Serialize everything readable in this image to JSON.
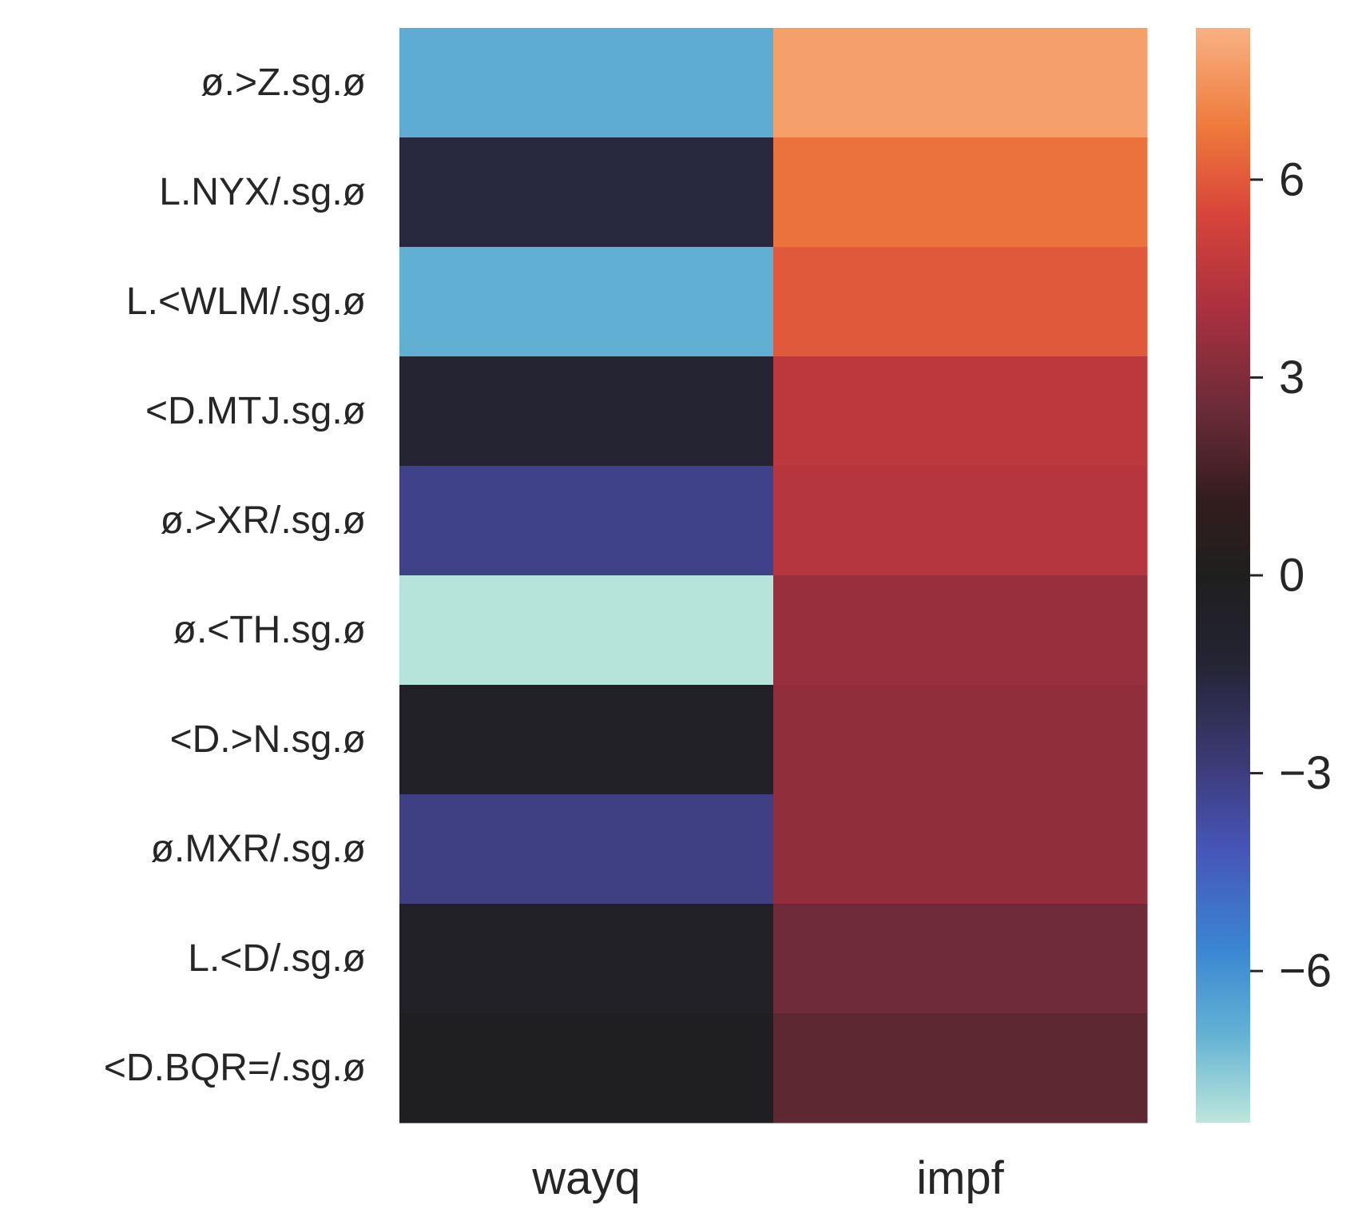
{
  "chart_data": {
    "type": "heatmap",
    "title": "",
    "xlabel": "",
    "ylabel": "",
    "columns": [
      "wayq",
      "impf"
    ],
    "rows": [
      "ø.>Z.sg.ø",
      "L.NYX/.sg.ø",
      "L.<WLM/.sg.ø",
      "<D.MTJ.sg.ø",
      "ø.>XR/.sg.ø",
      "ø.<TH.sg.ø",
      "<D.>N.sg.ø",
      "ø.MXR/.sg.ø",
      "L.<D/.sg.ø",
      "<D.BQR=/.sg.ø"
    ],
    "values": [
      [
        -6.8,
        7.8
      ],
      [
        -1.6,
        6.6
      ],
      [
        -6.9,
        6.0
      ],
      [
        -1.3,
        4.6
      ],
      [
        -3.2,
        4.4
      ],
      [
        -8.2,
        3.6
      ],
      [
        -0.6,
        3.4
      ],
      [
        -3.1,
        3.4
      ],
      [
        -0.6,
        2.6
      ],
      [
        -0.1,
        2.2
      ]
    ],
    "colorbar": {
      "vmin": -8.3,
      "vmax": 8.3,
      "ticks": [
        6,
        3,
        0,
        -3,
        -6
      ],
      "tick_labels": [
        "6",
        "3",
        "0",
        "−3",
        "−6"
      ],
      "colormap": "icefire",
      "colors": {
        "neg_max": "#bde7db",
        "neg_high": "#63b2d4",
        "neg_mid_high": "#3a85d2",
        "neg_mid": "#4655b8",
        "neg_low": "#3c3a75",
        "neg_near": "#242433",
        "zero": "#1f1e1e",
        "pos_near": "#331d1e",
        "pos_low": "#6a2b38",
        "pos_mid": "#a8303f",
        "pos_mid_high": "#d8443a",
        "pos_high": "#ef7a3c",
        "pos_max": "#f8b183"
      }
    }
  }
}
